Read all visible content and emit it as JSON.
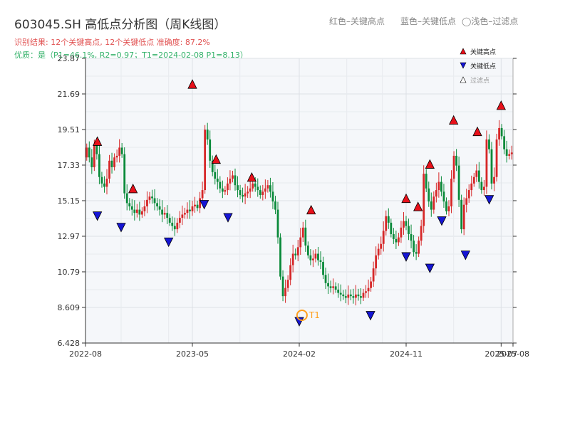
{
  "header": {
    "title": "603045.SH 高低点分析图（周K线图）",
    "result_line": "识别结果: 12个关键高点, 12个关键低点   准确度: 87.2%",
    "quality_line": "优质：是（P1=46.1%, R2=0.97；T1=2024-02-08 P1=8.13）"
  },
  "top_legend": {
    "high": "红色–关键高点",
    "low": "蓝色–关键低点",
    "filtered": "◯浅色–过滤点"
  },
  "colors": {
    "up": "#d62728",
    "down": "#0a8a3a",
    "high_marker": "#e8101a",
    "low_marker": "#1515d4",
    "t1_marker": "#ff9f1c",
    "plot_bg": "#f5f7fa",
    "grid": "#dde1e6"
  },
  "chart_data": {
    "type": "candlestick",
    "title": "603045.SH 高低点分析图（周K线图）",
    "x_ticks": [
      "2022-08",
      "2023-05",
      "2024-02",
      "2024-11",
      "2025-07",
      "2025-08"
    ],
    "y_ticks": [
      "6.428",
      "8.609",
      "10.79",
      "12.97",
      "15.15",
      "17.33",
      "19.51",
      "21.69",
      "23.87"
    ],
    "ylim": [
      6.428,
      23.87
    ],
    "xlim": [
      "2022-08",
      "2025-08"
    ],
    "grid": true,
    "legend_position": "top-right",
    "legend": [
      {
        "label": "关键高点",
        "marker": "triangle-up",
        "color": "#e8101a"
      },
      {
        "label": "关键低点",
        "marker": "triangle-down",
        "color": "#1515d4"
      },
      {
        "label": "过滤点",
        "marker": "triangle-up-outline",
        "color": "#ffffff"
      }
    ],
    "annotation": "T1",
    "approximate": true,
    "weekly_close": [
      18.4,
      17.8,
      17.2,
      18.6,
      18.0,
      16.6,
      16.2,
      16.0,
      16.5,
      17.6,
      17.2,
      17.8,
      17.9,
      18.4,
      18.0,
      15.6,
      15.0,
      14.8,
      14.6,
      14.4,
      14.6,
      14.3,
      14.5,
      14.8,
      15.2,
      15.4,
      15.3,
      15.0,
      14.8,
      14.6,
      14.3,
      14.4,
      14.1,
      13.8,
      13.6,
      13.4,
      13.8,
      14.1,
      14.3,
      14.4,
      14.6,
      14.5,
      14.8,
      14.9,
      14.7,
      15.3,
      15.8,
      19.5,
      18.9,
      17.6,
      16.9,
      16.5,
      16.3,
      15.9,
      15.7,
      15.8,
      16.2,
      16.5,
      16.7,
      16.1,
      15.8,
      15.5,
      15.4,
      15.6,
      15.7,
      15.9,
      16.2,
      16.0,
      15.8,
      15.5,
      15.7,
      15.9,
      16.1,
      15.7,
      15.1,
      14.6,
      12.9,
      10.5,
      9.3,
      9.8,
      10.3,
      11.2,
      11.9,
      11.8,
      12.3,
      12.9,
      13.5,
      12.4,
      11.8,
      11.5,
      11.6,
      11.9,
      11.5,
      11.4,
      10.6,
      10.1,
      9.9,
      9.8,
      9.9,
      9.7,
      9.5,
      9.4,
      9.3,
      9.2,
      9.4,
      9.3,
      9.2,
      9.4,
      9.3,
      9.2,
      9.5,
      9.6,
      9.8,
      10.2,
      11.0,
      11.8,
      12.2,
      12.5,
      13.3,
      14.2,
      13.8,
      13.1,
      12.8,
      12.6,
      12.9,
      13.5,
      13.9,
      13.6,
      13.1,
      12.7,
      12.0,
      11.9,
      12.7,
      13.6,
      16.8,
      15.9,
      15.1,
      14.6,
      15.4,
      15.8,
      16.3,
      15.7,
      15.1,
      14.5,
      14.8,
      16.5,
      17.9,
      17.3,
      15.2,
      13.4,
      14.9,
      15.3,
      15.8,
      16.2,
      16.6,
      17.0,
      16.3,
      15.8,
      16.0,
      18.9,
      18.3,
      16.2,
      16.6,
      18.9,
      19.6,
      19.1,
      18.3,
      17.9,
      18.0,
      18.1
    ],
    "key_highs": [
      {
        "label": "关键高点",
        "date": "2022-09",
        "value": 18.4
      },
      {
        "label": "关键高点",
        "date": "2022-12",
        "value": 15.5
      },
      {
        "label": "关键高点",
        "date": "2023-05",
        "value": 21.9
      },
      {
        "label": "关键高点",
        "date": "2023-07",
        "value": 17.3
      },
      {
        "label": "关键高点",
        "date": "2023-10",
        "value": 16.2
      },
      {
        "label": "关键高点",
        "date": "2024-03",
        "value": 14.2
      },
      {
        "label": "关键高点",
        "date": "2024-11",
        "value": 14.9
      },
      {
        "label": "关键高点",
        "date": "2024-12",
        "value": 14.4
      },
      {
        "label": "关键高点",
        "date": "2025-01",
        "value": 17.0
      },
      {
        "label": "关键高点",
        "date": "2025-03",
        "value": 19.7
      },
      {
        "label": "关键高点",
        "date": "2025-05",
        "value": 19.0
      },
      {
        "label": "关键高点",
        "date": "2025-07",
        "value": 20.6
      }
    ],
    "key_lows": [
      {
        "label": "关键低点",
        "date": "2022-09",
        "value": 14.6
      },
      {
        "label": "关键低点",
        "date": "2022-11",
        "value": 13.9
      },
      {
        "label": "关键低点",
        "date": "2023-03",
        "value": 13.0
      },
      {
        "label": "关键低点",
        "date": "2023-06",
        "value": 15.3
      },
      {
        "label": "关键低点",
        "date": "2023-08",
        "value": 14.5
      },
      {
        "label": "关键低点",
        "date": "2024-02",
        "value": 8.13
      },
      {
        "label": "关键低点",
        "date": "2024-08",
        "value": 8.5
      },
      {
        "label": "关键低点",
        "date": "2024-11",
        "value": 12.1
      },
      {
        "label": "关键低点",
        "date": "2025-01",
        "value": 11.4
      },
      {
        "label": "关键低点",
        "date": "2025-02",
        "value": 14.3
      },
      {
        "label": "关键低点",
        "date": "2025-04",
        "value": 12.2
      },
      {
        "label": "关键低点",
        "date": "2025-06",
        "value": 15.6
      }
    ],
    "t1": {
      "label": "T1",
      "date": "2024-02-08",
      "value": 8.13
    }
  }
}
